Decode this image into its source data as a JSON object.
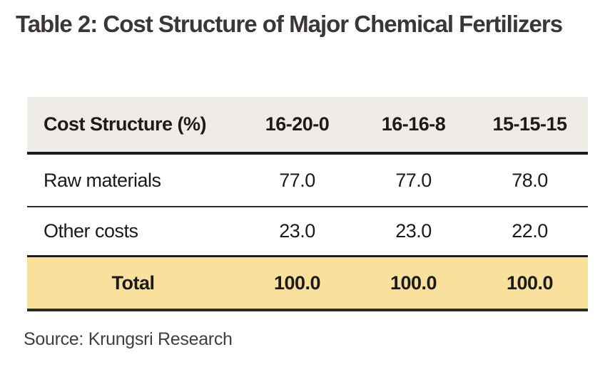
{
  "title": "Table 2: Cost Structure of Major Chemical Fertilizers",
  "table": {
    "header": {
      "label": "Cost Structure (%)",
      "columns": [
        "16-20-0",
        "16-16-8",
        "15-15-15"
      ]
    },
    "rows": [
      {
        "label": "Raw materials",
        "values": [
          "77.0",
          "77.0",
          "78.0"
        ]
      },
      {
        "label": "Other costs",
        "values": [
          "23.0",
          "23.0",
          "22.0"
        ]
      }
    ],
    "total": {
      "label": "Total",
      "values": [
        "100.0",
        "100.0",
        "100.0"
      ]
    }
  },
  "source": "Source: Krungsri Research",
  "colors": {
    "page_bg": "#FFFFFF",
    "header_bg": "#EFECE7",
    "total_row_bg": "#F9E09D",
    "border_dark": "#1B1B1B",
    "divider": "#2B2B2B",
    "text": "#1B1B1B",
    "title_text": "#3B3737",
    "source_text": "#403E3E"
  },
  "chart_data": {
    "type": "table",
    "title": "Table 2: Cost Structure of Major Chemical Fertilizers",
    "columns": [
      "Cost Structure (%)",
      "16-20-0",
      "16-16-8",
      "15-15-15"
    ],
    "rows": [
      [
        "Raw materials",
        77.0,
        77.0,
        78.0
      ],
      [
        "Other costs",
        23.0,
        23.0,
        22.0
      ],
      [
        "Total",
        100.0,
        100.0,
        100.0
      ]
    ],
    "source": "Source: Krungsri Research"
  }
}
